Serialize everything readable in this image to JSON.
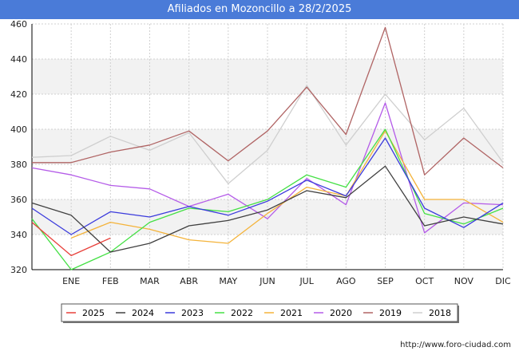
{
  "chart_data": {
    "type": "line",
    "title": "Afiliados en Mozoncillo a 28/2/2025",
    "categories": [
      "",
      "ENE",
      "FEB",
      "MAR",
      "ABR",
      "MAY",
      "JUN",
      "JUL",
      "AGO",
      "SEP",
      "OCT",
      "NOV",
      "DIC"
    ],
    "y_ticks": [
      320,
      340,
      360,
      380,
      400,
      420,
      440,
      460
    ],
    "ylim": [
      320,
      460
    ],
    "grid": true,
    "legend_position": "bottom",
    "series": [
      {
        "name": "2025",
        "color": "#e8413b",
        "values": [
          347,
          328,
          338,
          null,
          null,
          null,
          null,
          null,
          null,
          null,
          null,
          null,
          null
        ]
      },
      {
        "name": "2024",
        "color": "#404040",
        "values": [
          358,
          351,
          330,
          335,
          345,
          348,
          354,
          365,
          361,
          379,
          345,
          350,
          346
        ]
      },
      {
        "name": "2023",
        "color": "#3b3bdc",
        "values": [
          355,
          340,
          353,
          350,
          356,
          351,
          359,
          371,
          362,
          395,
          355,
          344,
          358
        ]
      },
      {
        "name": "2022",
        "color": "#44e044",
        "values": [
          349,
          320,
          330,
          347,
          355,
          353,
          360,
          374,
          367,
          400,
          352,
          346,
          355
        ]
      },
      {
        "name": "2021",
        "color": "#f4b33a",
        "values": [
          null,
          338,
          347,
          343,
          337,
          335,
          352,
          367,
          362,
          399,
          360,
          360,
          347
        ]
      },
      {
        "name": "2020",
        "color": "#b45be8",
        "values": [
          378,
          374,
          368,
          366,
          356,
          363,
          349,
          372,
          357,
          415,
          341,
          358,
          357
        ]
      },
      {
        "name": "2019",
        "color": "#b06464",
        "values": [
          381,
          381,
          387,
          391,
          399,
          382,
          399,
          424,
          397,
          458,
          374,
          395,
          378
        ]
      },
      {
        "name": "2018",
        "color": "#cfcfcf",
        "values": [
          384,
          385,
          396,
          388,
          398,
          369,
          388,
          425,
          391,
          420,
          394,
          412,
          381
        ]
      }
    ]
  },
  "source_text": "http://www.foro-ciudad.com"
}
